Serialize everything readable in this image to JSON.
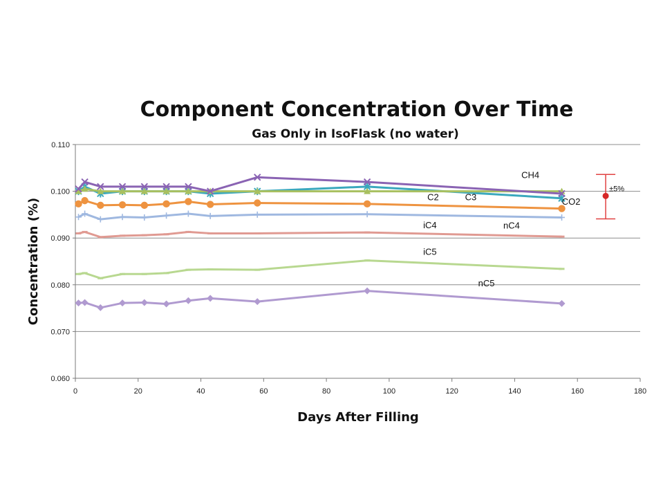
{
  "chart_data": {
    "type": "line",
    "title": "Component Concentration Over Time",
    "subtitle": "Gas Only in IsoFlask (no water)",
    "xlabel": "Days After Filling",
    "ylabel": "Concentration (%)",
    "xlim": [
      0,
      180
    ],
    "ylim": [
      0.06,
      0.11
    ],
    "xticks": [
      0,
      20,
      40,
      60,
      80,
      100,
      120,
      140,
      160,
      180
    ],
    "yticks": [
      0.06,
      0.07,
      0.08,
      0.09,
      0.1,
      0.11
    ],
    "xtick_labels": [
      "0",
      "20",
      "40",
      "60",
      "80",
      "100",
      "120",
      "140",
      "160",
      "180"
    ],
    "ytick_labels": [
      "0.060",
      "0.070",
      "0.080",
      "0.090",
      "0.100",
      "0.110"
    ],
    "grid": "horizontal",
    "x": [
      1,
      3,
      8,
      15,
      22,
      29,
      36,
      43,
      58,
      93,
      155
    ],
    "series": [
      {
        "name": "CH4",
        "color": "#8a63b3",
        "marker": "x",
        "values": [
          0.1005,
          0.102,
          0.101,
          0.101,
          0.101,
          0.101,
          0.101,
          0.1,
          0.103,
          0.102,
          0.0995
        ]
      },
      {
        "name": "C2",
        "color": "#a8c060",
        "marker": "triangle",
        "values": [
          0.1,
          0.1005,
          0.1,
          0.1,
          0.1,
          0.1,
          0.1,
          0.1,
          0.1,
          0.1,
          0.1
        ]
      },
      {
        "name": "C3",
        "color": "#3aa8bd",
        "marker": "asterisk",
        "values": [
          0.1,
          0.101,
          0.0995,
          0.1,
          0.1,
          0.1,
          0.1,
          0.0995,
          0.1,
          0.101,
          0.0985
        ]
      },
      {
        "name": "CO2",
        "color": "#ee9340",
        "marker": "circle",
        "values": [
          0.0973,
          0.098,
          0.097,
          0.0971,
          0.097,
          0.0973,
          0.0978,
          0.0972,
          0.0975,
          0.0973,
          0.0963
        ]
      },
      {
        "name": "iC4",
        "color": "#9fb8e0",
        "marker": "plus",
        "values": [
          0.0945,
          0.0952,
          0.094,
          0.0945,
          0.0944,
          0.0948,
          0.0952,
          0.0947,
          0.095,
          0.0951,
          0.0944
        ]
      },
      {
        "name": "nC4",
        "color": "#e09a92",
        "marker": "dash",
        "values": [
          0.091,
          0.0913,
          0.0902,
          0.0905,
          0.0906,
          0.0908,
          0.0913,
          0.091,
          0.091,
          0.0912,
          0.0903
        ]
      },
      {
        "name": "iC5",
        "color": "#b8d890",
        "marker": "dash",
        "values": [
          0.0823,
          0.0825,
          0.0814,
          0.0823,
          0.0823,
          0.0825,
          0.0832,
          0.0833,
          0.0832,
          0.0852,
          0.0834
        ]
      },
      {
        "name": "nC5",
        "color": "#b09ad0",
        "marker": "diamond",
        "values": [
          0.0761,
          0.0762,
          0.0751,
          0.0761,
          0.0762,
          0.0759,
          0.0766,
          0.0771,
          0.0764,
          0.0787,
          0.076
        ]
      }
    ],
    "series_labels": [
      {
        "text": "CH4",
        "x": 145,
        "y": 0.1028
      },
      {
        "text": "C2",
        "x": 114,
        "y": 0.0981
      },
      {
        "text": "C3",
        "x": 126,
        "y": 0.0981
      },
      {
        "text": "CO2",
        "x": 158,
        "y": 0.0971
      },
      {
        "text": "iC4",
        "x": 113,
        "y": 0.0921
      },
      {
        "text": "nC4",
        "x": 139,
        "y": 0.092
      },
      {
        "text": "iC5",
        "x": 113,
        "y": 0.0864
      },
      {
        "text": "nC5",
        "x": 131,
        "y": 0.0797
      }
    ],
    "error_bar": {
      "label": "±5%",
      "x": 169,
      "y": 0.099,
      "low": 0.0941,
      "high": 0.1036,
      "color": "#e04040",
      "point_color": "#d62828"
    }
  }
}
